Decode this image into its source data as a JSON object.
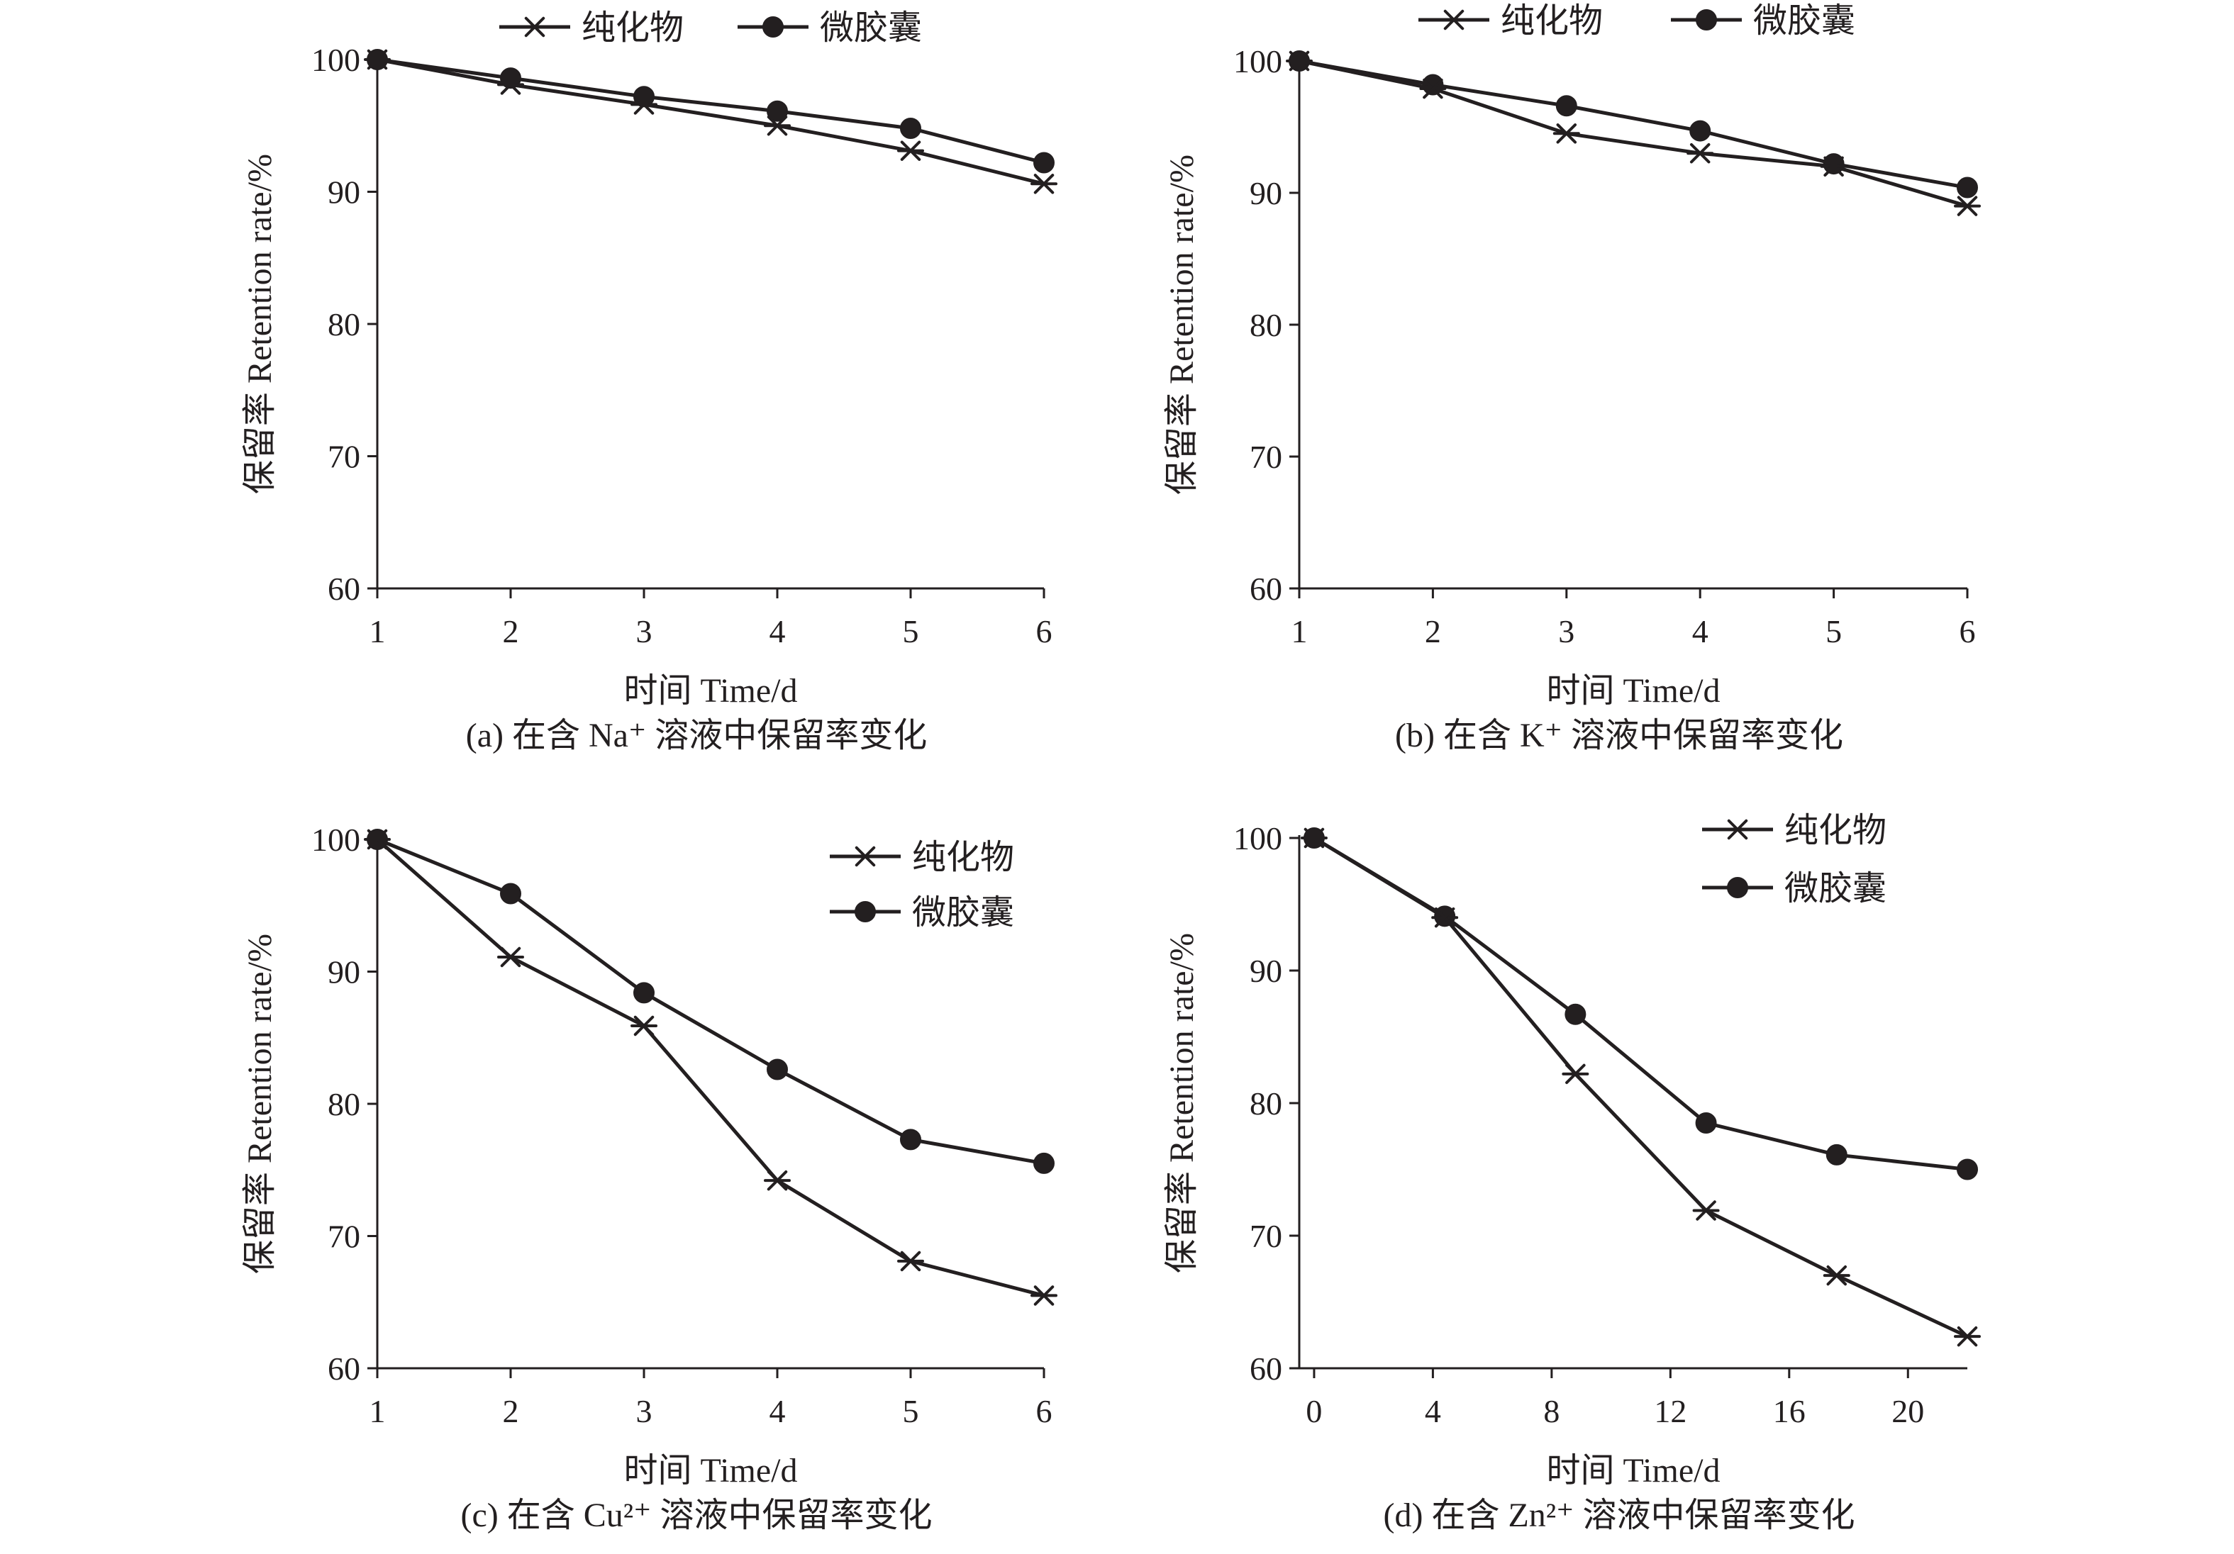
{
  "chart_data": [
    {
      "type": "line",
      "caption": "(a) 在含 Na⁺ 溶液中保留率变化",
      "xlabel": "时间 Time/d",
      "ylabel": "保留率 Retention rate/%",
      "x": [
        1,
        2,
        3,
        4,
        5,
        6
      ],
      "xticks": [
        "1",
        "2",
        "3",
        "4",
        "5",
        "6"
      ],
      "yticks": [
        "60",
        "70",
        "80",
        "90",
        "100"
      ],
      "xlim": [
        1,
        6
      ],
      "ylim": [
        60,
        100
      ],
      "legend_position": "top",
      "series": [
        {
          "name": "纯化物",
          "marker": "asterisk",
          "values": [
            100,
            98.1,
            96.6,
            95.0,
            93.1,
            90.6
          ]
        },
        {
          "name": "微胶囊",
          "marker": "circle",
          "values": [
            100,
            98.6,
            97.2,
            96.1,
            94.8,
            92.2
          ]
        }
      ]
    },
    {
      "type": "line",
      "caption": "(b) 在含 K⁺ 溶液中保留率变化",
      "xlabel": "时间 Time/d",
      "ylabel": "保留率 Retention rate/%",
      "x": [
        1,
        2,
        3,
        4,
        5,
        6
      ],
      "xticks": [
        "1",
        "2",
        "3",
        "4",
        "5",
        "6"
      ],
      "yticks": [
        "60",
        "70",
        "80",
        "90",
        "100"
      ],
      "xlim": [
        1,
        6
      ],
      "ylim": [
        60,
        100
      ],
      "legend_position": "top",
      "series": [
        {
          "name": "纯化物",
          "marker": "asterisk",
          "values": [
            100,
            97.9,
            94.5,
            93.0,
            92.0,
            89.0
          ]
        },
        {
          "name": "微胶囊",
          "marker": "circle",
          "values": [
            100,
            98.2,
            96.6,
            94.7,
            92.2,
            90.4
          ]
        }
      ]
    },
    {
      "type": "line",
      "caption": "(c) 在含 Cu²⁺ 溶液中保留率变化",
      "xlabel": "时间 Time/d",
      "ylabel": "保留率 Retention rate/%",
      "x": [
        1,
        2,
        3,
        4,
        5,
        6
      ],
      "xticks": [
        "1",
        "2",
        "3",
        "4",
        "5",
        "6"
      ],
      "yticks": [
        "60",
        "70",
        "80",
        "90",
        "100"
      ],
      "xlim": [
        1,
        6
      ],
      "ylim": [
        60,
        100
      ],
      "legend_position": "top-right",
      "series": [
        {
          "name": "纯化物",
          "marker": "asterisk",
          "values": [
            100,
            91.1,
            85.9,
            74.2,
            68.1,
            65.5
          ]
        },
        {
          "name": "微胶囊",
          "marker": "circle",
          "values": [
            100,
            95.9,
            88.4,
            82.6,
            77.3,
            75.5
          ]
        }
      ]
    },
    {
      "type": "line",
      "caption": "(d) 在含 Zn²⁺ 溶液中保留率变化",
      "xlabel": "时间 Time/d",
      "ylabel": "保留率 Retention rate/%",
      "x": [
        0,
        4.4,
        8.8,
        13.2,
        17.6,
        22
      ],
      "xticks": [
        "0",
        "4",
        "8",
        "12",
        "16",
        "20"
      ],
      "xtick_values": [
        0,
        4,
        8,
        12,
        16,
        20
      ],
      "yticks": [
        "60",
        "70",
        "80",
        "90",
        "100"
      ],
      "xlim": [
        -0.5,
        22
      ],
      "ylim": [
        60,
        100
      ],
      "legend_position": "top-right",
      "series": [
        {
          "name": "纯化物",
          "marker": "asterisk",
          "values": [
            100,
            94.0,
            82.2,
            71.9,
            67.0,
            62.4
          ]
        },
        {
          "name": "微胶囊",
          "marker": "circle",
          "values": [
            100,
            94.1,
            86.7,
            78.5,
            76.1,
            75.0
          ]
        }
      ]
    }
  ]
}
